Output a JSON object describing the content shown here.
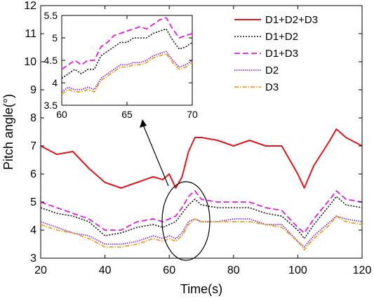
{
  "chart_data": [
    {
      "type": "line",
      "title": "",
      "xlabel": "Time(s)",
      "ylabel": "Pitch angle(°)",
      "xlim": [
        20,
        120
      ],
      "ylim": [
        3,
        12
      ],
      "xticks": [
        20,
        40,
        60,
        80,
        100,
        120
      ],
      "yticks": [
        3,
        4,
        5,
        6,
        7,
        8,
        9,
        10,
        11,
        12
      ],
      "grid": false,
      "legend_position": "top-right",
      "x": [
        20,
        25,
        30,
        35,
        40,
        45,
        50,
        55,
        58,
        60,
        62,
        64,
        66,
        68,
        70,
        75,
        80,
        85,
        90,
        95,
        100,
        102,
        105,
        110,
        112,
        115,
        120
      ],
      "series": [
        {
          "name": "D1+D2+D3",
          "color": "#e8141c",
          "dash": "",
          "width": 2,
          "values": [
            7.0,
            6.7,
            6.8,
            6.2,
            5.7,
            5.5,
            5.7,
            5.9,
            5.8,
            6.0,
            5.5,
            5.9,
            6.8,
            7.3,
            7.3,
            7.2,
            7.0,
            7.2,
            7.0,
            7.0,
            6.0,
            5.5,
            6.3,
            7.2,
            7.6,
            7.3,
            7.0
          ]
        },
        {
          "name": "D1+D2",
          "color": "#111111",
          "dash": "2 2",
          "width": 1.6,
          "values": [
            4.8,
            4.6,
            4.5,
            4.3,
            3.8,
            3.9,
            4.1,
            4.2,
            4.1,
            4.2,
            4.3,
            4.6,
            4.9,
            5.1,
            4.9,
            4.8,
            4.8,
            4.8,
            4.6,
            4.5,
            4.0,
            3.7,
            4.2,
            4.9,
            5.2,
            4.9,
            4.8
          ]
        },
        {
          "name": "D1+D3",
          "color": "#e619e6",
          "dash": "8 4",
          "width": 1.8,
          "values": [
            5.0,
            4.8,
            4.6,
            4.4,
            4.0,
            4.0,
            4.3,
            4.4,
            4.3,
            4.4,
            4.5,
            4.8,
            5.2,
            5.4,
            5.1,
            5.0,
            5.0,
            5.0,
            4.8,
            4.7,
            4.1,
            3.9,
            4.4,
            5.1,
            5.4,
            5.1,
            5.0
          ]
        },
        {
          "name": "D2",
          "color": "#8b2be0",
          "dash": "1.5 1.5",
          "width": 1.8,
          "values": [
            4.3,
            4.1,
            3.9,
            3.8,
            3.5,
            3.5,
            3.6,
            3.8,
            3.7,
            3.8,
            3.7,
            3.9,
            4.3,
            4.4,
            4.3,
            4.3,
            4.4,
            4.4,
            4.2,
            4.2,
            3.6,
            3.4,
            3.8,
            4.3,
            4.5,
            4.4,
            4.3
          ]
        },
        {
          "name": "D3",
          "color": "#f0a020",
          "dash": "6 2 1.5 2",
          "width": 1.8,
          "values": [
            4.2,
            4.0,
            3.9,
            3.7,
            3.4,
            3.4,
            3.5,
            3.7,
            3.6,
            3.7,
            3.6,
            3.8,
            4.2,
            4.4,
            4.3,
            4.3,
            4.3,
            4.3,
            4.2,
            4.1,
            3.6,
            3.3,
            3.7,
            4.2,
            4.5,
            4.3,
            4.2
          ]
        }
      ]
    },
    {
      "type": "line",
      "title": "",
      "xlim": [
        60,
        70
      ],
      "ylim": [
        3.5,
        5.5
      ],
      "xticks": [
        60,
        65,
        70
      ],
      "yticks": [
        3.5,
        4,
        4.5,
        5,
        5.5
      ],
      "grid": false,
      "x": [
        60,
        60.5,
        61,
        61.5,
        62,
        62.5,
        63,
        63.5,
        64,
        64.5,
        65,
        65.5,
        66,
        66.5,
        67,
        67.5,
        68,
        68.5,
        69,
        69.5,
        70
      ],
      "series": [
        {
          "name": "D1+D2",
          "color": "#111111",
          "dash": "2 2",
          "width": 1.6,
          "values": [
            4.1,
            4.2,
            4.3,
            4.2,
            4.3,
            4.3,
            4.6,
            4.7,
            4.8,
            4.9,
            4.9,
            5.0,
            5.0,
            5.0,
            5.1,
            5.15,
            5.2,
            4.95,
            4.75,
            4.8,
            4.9
          ]
        },
        {
          "name": "D1+D3",
          "color": "#e619e6",
          "dash": "8 4",
          "width": 1.8,
          "values": [
            4.3,
            4.4,
            4.5,
            4.4,
            4.5,
            4.5,
            4.8,
            4.9,
            5.05,
            5.1,
            5.15,
            5.2,
            5.25,
            5.2,
            5.3,
            5.4,
            5.45,
            5.2,
            5.0,
            5.05,
            5.1
          ]
        },
        {
          "name": "D2",
          "color": "#8b2be0",
          "dash": "1.5 1.5",
          "width": 1.8,
          "values": [
            3.8,
            3.9,
            3.85,
            3.85,
            3.9,
            3.85,
            4.1,
            4.2,
            4.3,
            4.4,
            4.4,
            4.45,
            4.45,
            4.5,
            4.6,
            4.65,
            4.7,
            4.5,
            4.35,
            4.4,
            4.5
          ]
        },
        {
          "name": "D3",
          "color": "#f0a020",
          "dash": "6 2 1.5 2",
          "width": 1.8,
          "values": [
            3.75,
            3.85,
            3.8,
            3.8,
            3.85,
            3.8,
            4.05,
            4.15,
            4.25,
            4.35,
            4.35,
            4.4,
            4.4,
            4.45,
            4.55,
            4.6,
            4.65,
            4.45,
            4.3,
            4.35,
            4.45
          ]
        }
      ]
    }
  ]
}
